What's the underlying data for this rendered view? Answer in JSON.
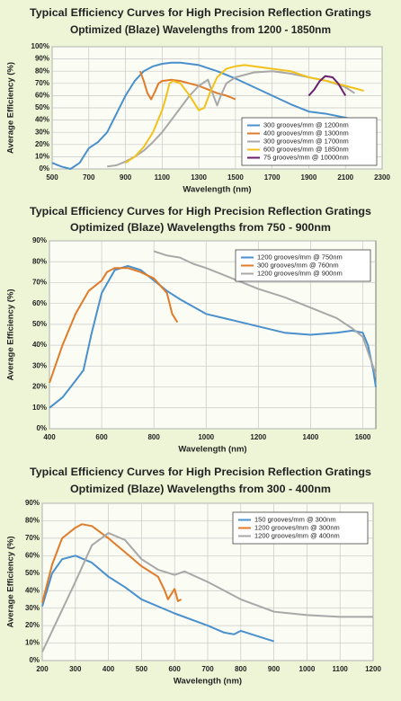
{
  "chart_data": [
    {
      "type": "line",
      "title": "Typical Efficiency Curves for High Precision Reflection Gratings",
      "subtitle": "Optimized (Blaze) Wavelengths from 1200 - 1850nm",
      "x_label": "Wavelength (nm)",
      "y_label": "Average Efficiency (%)",
      "xlim": [
        500,
        2300
      ],
      "xticks": [
        500,
        700,
        900,
        1100,
        1300,
        1500,
        1700,
        1900,
        2100,
        2300
      ],
      "ylim": [
        0,
        100
      ],
      "yticks": [
        {
          "value": 0,
          "label": "0%"
        },
        {
          "value": 10,
          "label": "10%"
        },
        {
          "value": 20,
          "label": "20%"
        },
        {
          "value": 30,
          "label": "30%"
        },
        {
          "value": 40,
          "label": "40%"
        },
        {
          "value": 50,
          "label": "50%"
        },
        {
          "value": 60,
          "label": "60%"
        },
        {
          "value": 70,
          "label": "70%"
        },
        {
          "value": 80,
          "label": "80%"
        },
        {
          "value": 90,
          "label": "90%"
        },
        {
          "value": 100,
          "label": "100%"
        }
      ],
      "grid": true,
      "legend": "lower right",
      "series": [
        {
          "name": "300 grooves/mm @ 1200nm",
          "color": "#4a90cc",
          "x": [
            500,
            550,
            600,
            650,
            700,
            750,
            800,
            850,
            900,
            950,
            1000,
            1050,
            1100,
            1150,
            1200,
            1300,
            1400,
            1500,
            1600,
            1700,
            1800,
            1900,
            2000,
            2100,
            2200
          ],
          "values": [
            5,
            2,
            0,
            5,
            17,
            22,
            30,
            45,
            60,
            72,
            80,
            84,
            86,
            87,
            87,
            85,
            80,
            74,
            67,
            60,
            53,
            47,
            45,
            42,
            38
          ]
        },
        {
          "name": "400 grooves/mm @ 1300nm",
          "color": "#e07b2a",
          "x": [
            980,
            1000,
            1020,
            1040,
            1060,
            1080,
            1100,
            1150,
            1200,
            1250,
            1300,
            1350,
            1400,
            1450,
            1500
          ],
          "values": [
            80,
            72,
            62,
            57,
            63,
            70,
            72,
            73,
            72,
            70,
            68,
            65,
            62,
            60,
            57
          ]
        },
        {
          "name": "300 grooves/mm @ 1700nm",
          "color": "#a8a8a8",
          "x": [
            800,
            850,
            900,
            950,
            1000,
            1050,
            1100,
            1150,
            1200,
            1250,
            1300,
            1350,
            1380,
            1400,
            1420,
            1450,
            1500,
            1600,
            1700,
            1800,
            1900,
            2000,
            2100,
            2150
          ],
          "values": [
            2,
            3,
            6,
            10,
            15,
            22,
            30,
            40,
            50,
            60,
            68,
            73,
            60,
            52,
            60,
            70,
            75,
            79,
            80,
            78,
            75,
            72,
            67,
            62
          ]
        },
        {
          "name": "600 grooves/mm @ 1850nm",
          "color": "#f2c21b",
          "x": [
            900,
            950,
            1000,
            1050,
            1100,
            1120,
            1140,
            1160,
            1200,
            1250,
            1300,
            1330,
            1360,
            1400,
            1450,
            1500,
            1550,
            1700,
            1800,
            1900,
            2000,
            2100,
            2200
          ],
          "values": [
            5,
            10,
            18,
            30,
            48,
            58,
            70,
            72,
            70,
            60,
            48,
            50,
            62,
            75,
            82,
            84,
            85,
            82,
            80,
            75,
            72,
            68,
            64
          ]
        },
        {
          "name": "75 grooves/mm @ 10000nm",
          "color": "#6b1f6e",
          "x": [
            1900,
            1930,
            1960,
            1990,
            2030,
            2060,
            2100
          ],
          "values": [
            60,
            65,
            72,
            76,
            75,
            70,
            60
          ]
        }
      ]
    },
    {
      "type": "line",
      "title": "Typical Efficiency Curves for High Precision Reflection Gratings",
      "subtitle": "Optimized (Blaze) Wavelengths from 750 - 900nm",
      "x_label": "Wavelength (nm)",
      "y_label": "Average Efficiency (%)",
      "xlim": [
        400,
        1650
      ],
      "xticks": [
        400,
        600,
        800,
        1000,
        1200,
        1400,
        1600
      ],
      "ylim": [
        0,
        90
      ],
      "yticks": [
        {
          "value": 0,
          "label": "0%"
        },
        {
          "value": 10,
          "label": "10%"
        },
        {
          "value": 20,
          "label": "20%"
        },
        {
          "value": 30,
          "label": "30%"
        },
        {
          "value": 40,
          "label": "40%"
        },
        {
          "value": 50,
          "label": "50%"
        },
        {
          "value": 60,
          "label": "60%"
        },
        {
          "value": 70,
          "label": "70%"
        },
        {
          "value": 80,
          "label": "80%"
        },
        {
          "value": 90,
          "label": "90%"
        }
      ],
      "grid": true,
      "legend": "upper right",
      "series": [
        {
          "name": "1200 grooves/mm @ 750nm",
          "color": "#4a90cc",
          "x": [
            400,
            450,
            500,
            530,
            560,
            600,
            650,
            700,
            750,
            800,
            850,
            900,
            1000,
            1100,
            1200,
            1300,
            1400,
            1500,
            1560,
            1600,
            1620,
            1640,
            1650
          ],
          "values": [
            10,
            15,
            23,
            28,
            45,
            65,
            76,
            78,
            76,
            71,
            66,
            62,
            55,
            52,
            49,
            46,
            45,
            46,
            47,
            46,
            40,
            28,
            20
          ]
        },
        {
          "name": "300 grooves/mm @ 760nm",
          "color": "#e07b2a",
          "x": [
            400,
            450,
            500,
            550,
            600,
            620,
            650,
            700,
            750,
            800,
            850,
            870,
            890
          ],
          "values": [
            22,
            40,
            55,
            66,
            71,
            75,
            77,
            77,
            75,
            72,
            65,
            55,
            51
          ]
        },
        {
          "name": "1200 grooves/mm @ 900nm",
          "color": "#a8a8a8",
          "x": [
            800,
            850,
            900,
            950,
            1000,
            1100,
            1200,
            1300,
            1400,
            1500,
            1560,
            1600,
            1650
          ],
          "values": [
            85,
            83,
            82,
            79,
            77,
            72,
            67,
            63,
            58,
            53,
            48,
            44,
            26
          ]
        }
      ]
    },
    {
      "type": "line",
      "title": "Typical Efficiency Curves for High Precision Reflection Gratings",
      "subtitle": "Optimized (Blaze) Wavelengths from 300 - 400nm",
      "x_label": "Wavelength (nm)",
      "y_label": "Average Efficiency (%)",
      "xlim": [
        200,
        1200
      ],
      "xticks": [
        200,
        300,
        400,
        500,
        600,
        700,
        800,
        900,
        1000,
        1100,
        1200
      ],
      "ylim": [
        0,
        90
      ],
      "yticks": [
        {
          "value": 0,
          "label": "0%"
        },
        {
          "value": 10,
          "label": "10%"
        },
        {
          "value": 20,
          "label": "20%"
        },
        {
          "value": 30,
          "label": "30%"
        },
        {
          "value": 40,
          "label": "40%"
        },
        {
          "value": 50,
          "label": "50%"
        },
        {
          "value": 60,
          "label": "60%"
        },
        {
          "value": 70,
          "label": "70%"
        },
        {
          "value": 80,
          "label": "80%"
        },
        {
          "value": 90,
          "label": "90%"
        }
      ],
      "grid": true,
      "legend": "upper right",
      "series": [
        {
          "name": "150 grooves/mm @ 300nm",
          "color": "#4a90cc",
          "x": [
            200,
            230,
            260,
            300,
            350,
            400,
            450,
            500,
            600,
            700,
            750,
            780,
            800,
            850,
            900
          ],
          "values": [
            31,
            50,
            58,
            60,
            56,
            48,
            42,
            35,
            27,
            20,
            16,
            15,
            17,
            14,
            11
          ]
        },
        {
          "name": "1200 grooves/mm @ 300nm",
          "color": "#e07b2a",
          "x": [
            200,
            230,
            260,
            300,
            320,
            350,
            400,
            450,
            500,
            550,
            570,
            580,
            600,
            610,
            620
          ],
          "values": [
            33,
            55,
            70,
            76,
            78,
            77,
            70,
            62,
            54,
            48,
            40,
            35,
            41,
            34,
            35
          ]
        },
        {
          "name": "1200 grooves/mm @ 400nm",
          "color": "#a8a8a8",
          "x": [
            200,
            250,
            300,
            350,
            400,
            450,
            500,
            550,
            600,
            630,
            700,
            800,
            900,
            1000,
            1100,
            1200
          ],
          "values": [
            5,
            25,
            45,
            66,
            73,
            69,
            58,
            52,
            49,
            51,
            45,
            35,
            28,
            26,
            25,
            25
          ]
        }
      ]
    }
  ]
}
